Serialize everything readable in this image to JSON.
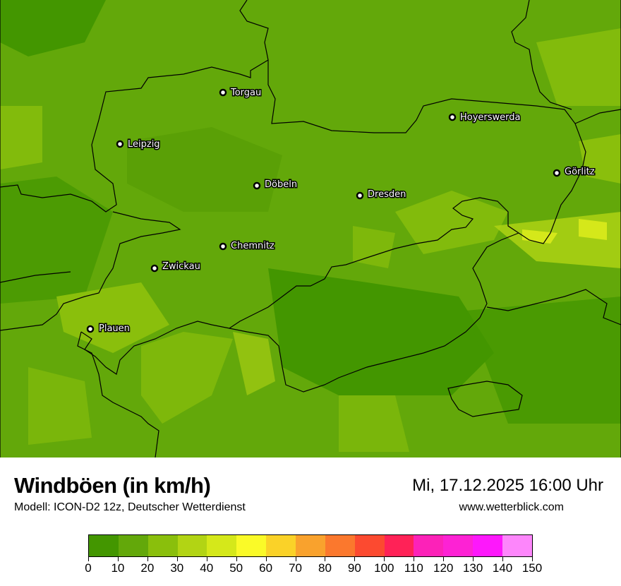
{
  "header": {
    "title": "Windböen (in km/h)",
    "subtitle": "Modell: ICON-D2 12z, Deutscher Wetterdienst",
    "datetime": "Mi, 17.12.2025 16:00 Uhr",
    "website": "www.wetterblick.com"
  },
  "legend": {
    "ticks": [
      "0",
      "10",
      "20",
      "30",
      "40",
      "50",
      "60",
      "70",
      "80",
      "90",
      "100",
      "110",
      "120",
      "130",
      "140",
      "150"
    ],
    "colors": [
      "#439600",
      "#63a80a",
      "#8abf0c",
      "#b2d414",
      "#d5e81a",
      "#fafa28",
      "#fad228",
      "#f9a22d",
      "#fb782d",
      "#fc4a30",
      "#ff2257",
      "#fc22b8",
      "#fd22d4",
      "#fd18fb",
      "#fd86fb"
    ]
  },
  "map": {
    "cities": [
      {
        "name": "Torgau"
      },
      {
        "name": "Hoyerswerda"
      },
      {
        "name": "Leipzig"
      },
      {
        "name": "Görlitz"
      },
      {
        "name": "Döbeln"
      },
      {
        "name": "Dresden"
      },
      {
        "name": "Chemnitz"
      },
      {
        "name": "Zwickau"
      },
      {
        "name": "Plauen"
      }
    ]
  }
}
